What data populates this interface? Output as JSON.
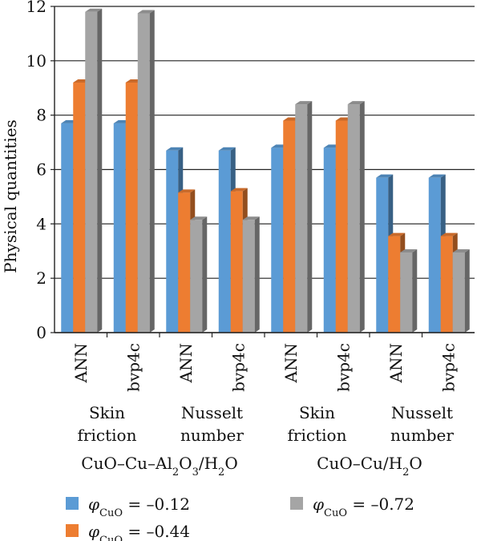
{
  "chart_data": {
    "type": "bar",
    "ylabel": "Physical quantities",
    "ylim": [
      0,
      12
    ],
    "yticks": [
      0,
      2,
      4,
      6,
      8,
      10,
      12
    ],
    "grid": true,
    "categories": [
      "ANN",
      "bvp4c",
      "ANN",
      "bvp4c",
      "ANN",
      "bvp4c",
      "ANN",
      "bvp4c"
    ],
    "quantity_groups": [
      {
        "line1": "Skin",
        "line2": "friction"
      },
      {
        "line1": "Nusselt",
        "line2": "number"
      },
      {
        "line1": "Skin",
        "line2": "friction"
      },
      {
        "line1": "Nusselt",
        "line2": "number"
      }
    ],
    "fluid_groups": [
      {
        "base": "CuO–Cu–Al",
        "sub1": "2",
        "mid": "O",
        "sub2": "3",
        "tail": "/H",
        "sub3": "2",
        "end": "O"
      },
      {
        "base": "CuO–Cu/H",
        "sub1": "2",
        "mid": "O",
        "sub2": "",
        "tail": "",
        "sub3": "",
        "end": ""
      }
    ],
    "series": [
      {
        "symbol": "φ",
        "subscript": "CuO",
        "value_text": " = –0.12",
        "color": "#5b9bd5",
        "values": [
          7.7,
          7.7,
          6.7,
          6.7,
          6.8,
          6.8,
          5.7,
          5.7
        ]
      },
      {
        "symbol": "φ",
        "subscript": "CuO",
        "value_text": " = –0.44",
        "color": "#ed7d31",
        "values": [
          9.2,
          9.2,
          5.15,
          5.2,
          7.8,
          7.8,
          3.55,
          3.55
        ]
      },
      {
        "symbol": "φ",
        "subscript": "CuO",
        "value_text": " = –0.72",
        "color": "#a5a5a5",
        "values": [
          11.8,
          11.75,
          4.15,
          4.15,
          8.4,
          8.4,
          2.95,
          2.95
        ]
      }
    ],
    "legend_position": "bottom"
  }
}
